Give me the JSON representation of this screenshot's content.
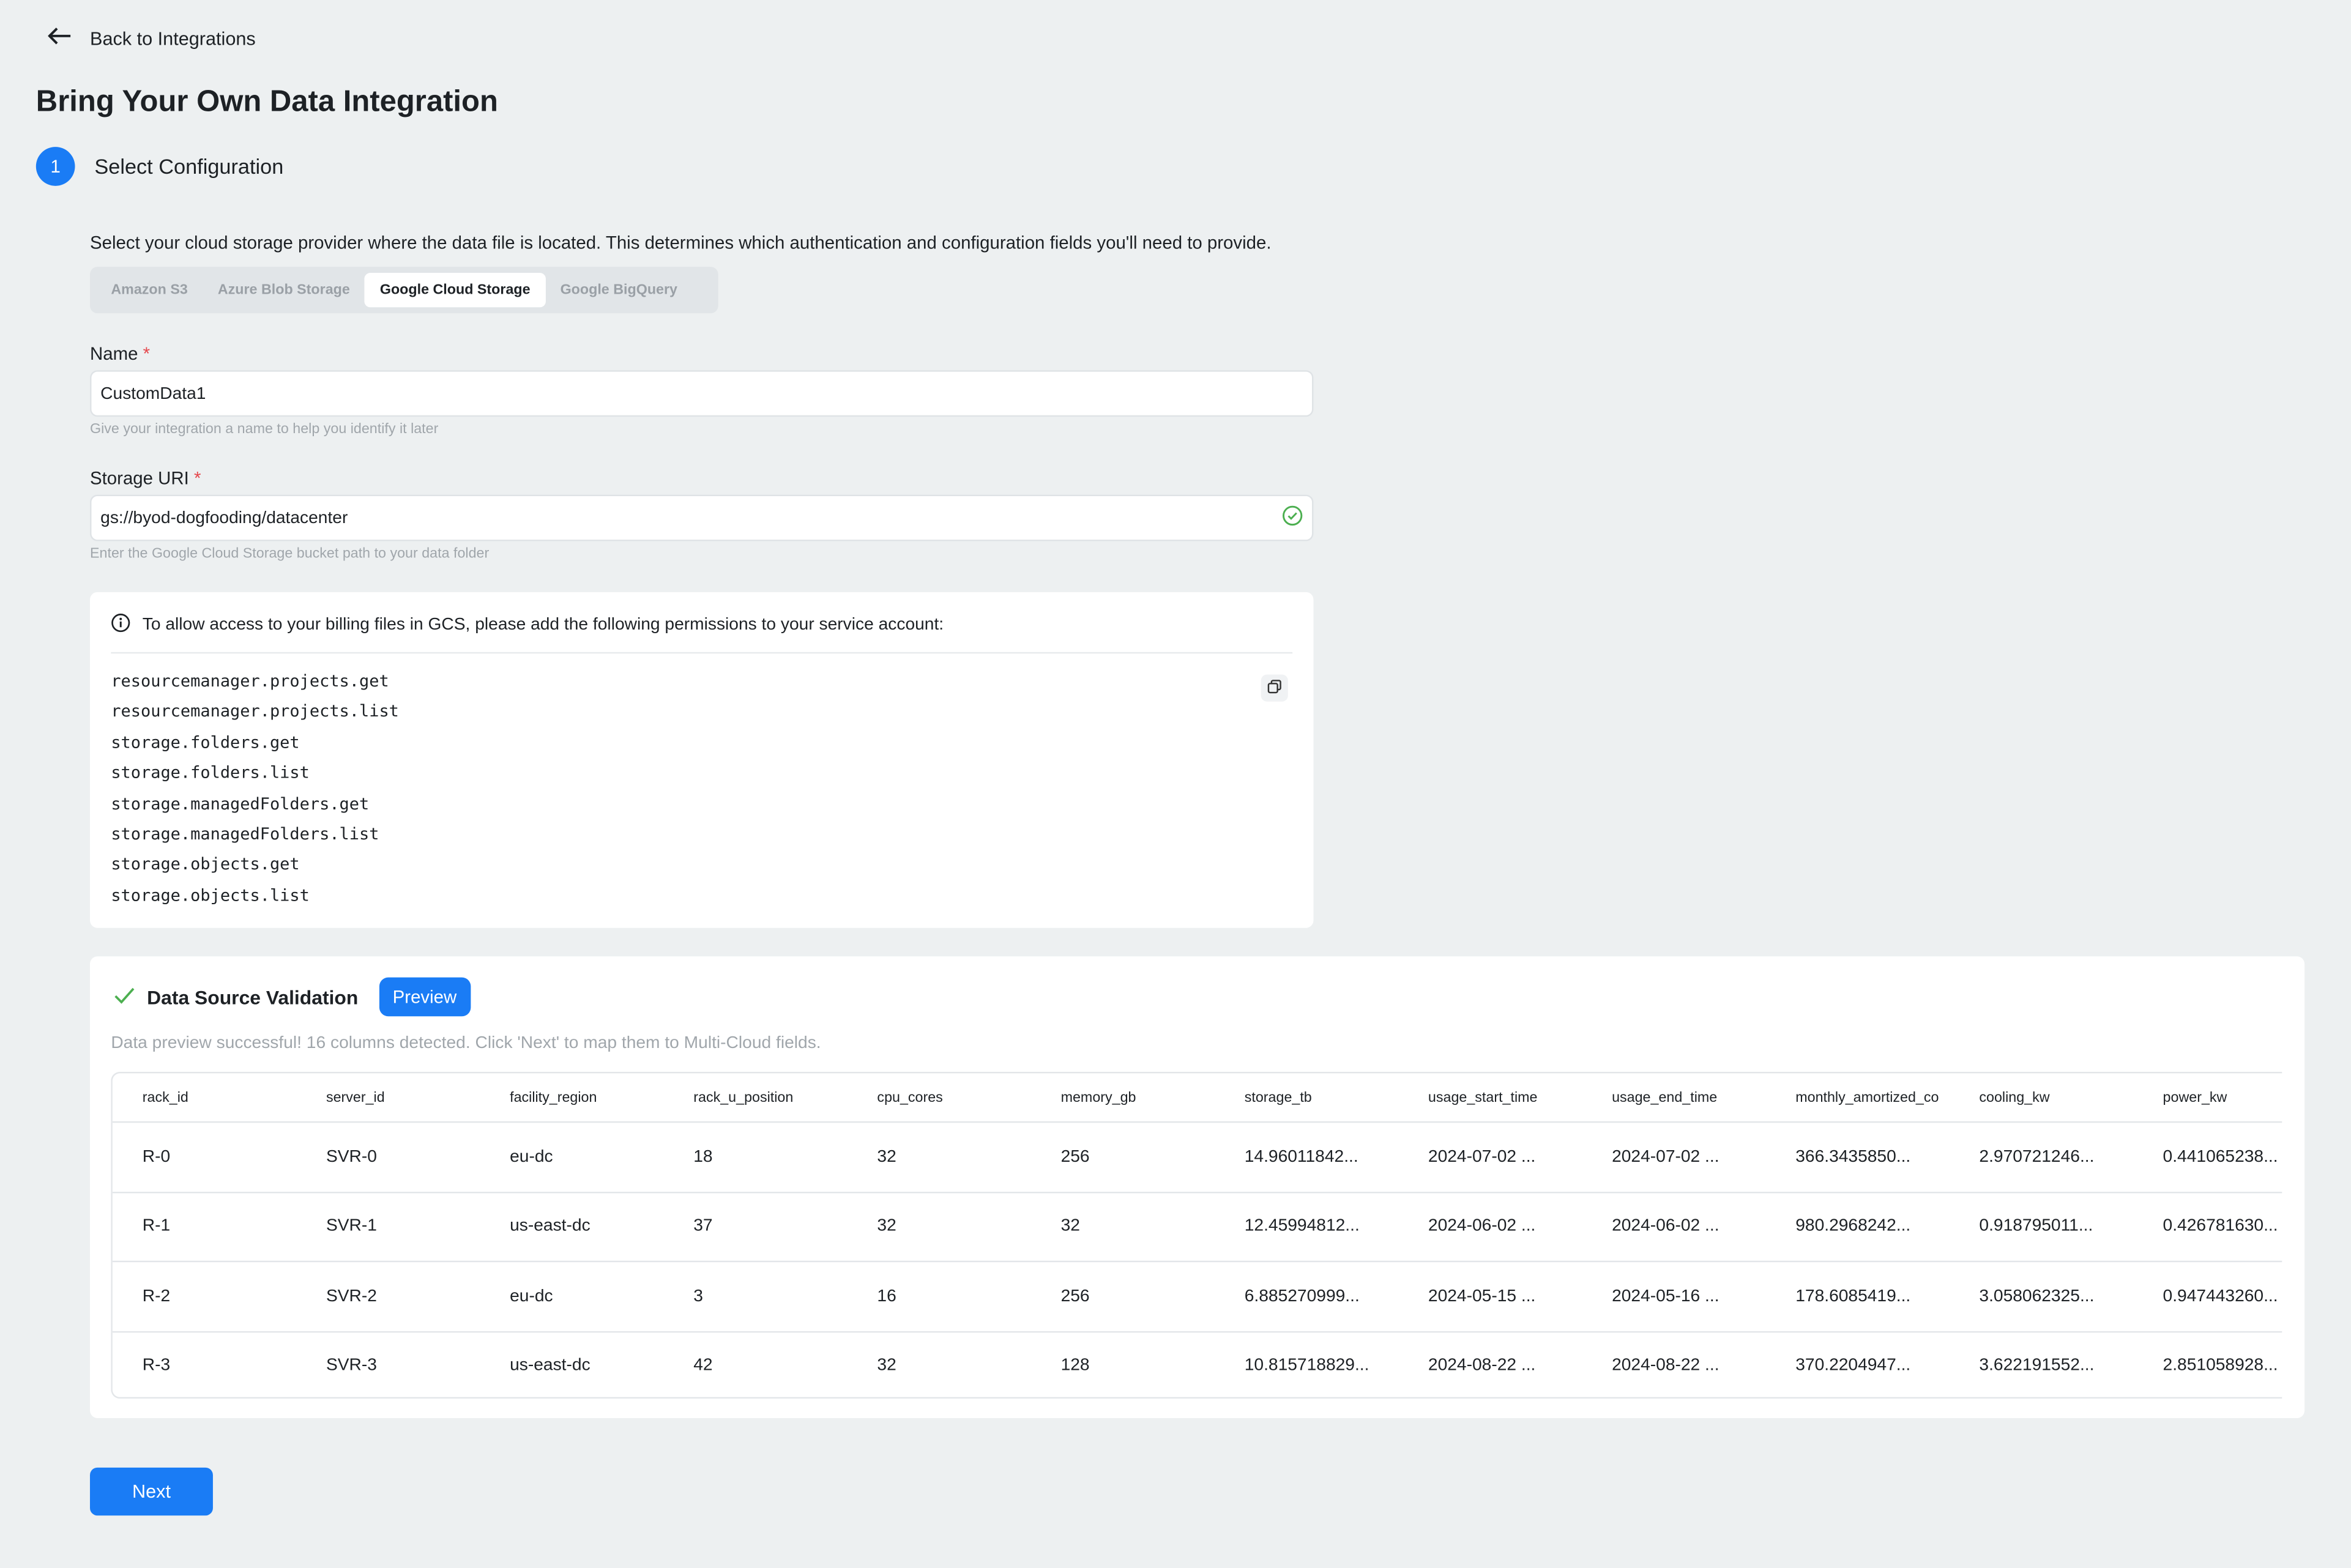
{
  "back_label": "Back to Integrations",
  "title": "Bring Your Own Data Integration",
  "step": {
    "number": "1",
    "label": "Select Configuration"
  },
  "description": "Select your cloud storage provider where the data file is located. This determines which authentication and configuration fields you'll need to provide.",
  "tabs": [
    {
      "label": "Amazon S3"
    },
    {
      "label": "Azure Blob Storage"
    },
    {
      "label": "Google Cloud Storage",
      "active": true
    },
    {
      "label": "Google BigQuery"
    }
  ],
  "name_field": {
    "label": "Name",
    "required": "*",
    "value": "CustomData1",
    "help": "Give your integration a name to help you identify it later"
  },
  "uri_field": {
    "label": "Storage URI",
    "required": "*",
    "value": "gs://byod-dogfooding/datacenter",
    "help": "Enter the Google Cloud Storage bucket path to your data folder"
  },
  "permissions": {
    "header": "To allow access to your billing files in GCS, please add the following permissions to your service account:",
    "items": [
      "resourcemanager.projects.get",
      "resourcemanager.projects.list",
      "storage.folders.get",
      "storage.folders.list",
      "storage.managedFolders.get",
      "storage.managedFolders.list",
      "storage.objects.get",
      "storage.objects.list"
    ]
  },
  "validation": {
    "title": "Data Source Validation",
    "preview_label": "Preview",
    "message": "Data preview successful! 16 columns detected. Click 'Next' to map them to Multi-Cloud fields.",
    "columns": [
      "rack_id",
      "server_id",
      "facility_region",
      "rack_u_position",
      "cpu_cores",
      "memory_gb",
      "storage_tb",
      "usage_start_time",
      "usage_end_time",
      "monthly_amortized_co",
      "cooling_kw",
      "power_kw"
    ],
    "rows": [
      [
        "R-0",
        "SVR-0",
        "eu-dc",
        "18",
        "32",
        "256",
        "14.96011842...",
        "2024-07-02 ...",
        "2024-07-02 ...",
        "366.3435850...",
        "2.970721246...",
        "0.441065238..."
      ],
      [
        "R-1",
        "SVR-1",
        "us-east-dc",
        "37",
        "32",
        "32",
        "12.45994812...",
        "2024-06-02 ...",
        "2024-06-02 ...",
        "980.2968242...",
        "0.918795011...",
        "0.426781630..."
      ],
      [
        "R-2",
        "SVR-2",
        "eu-dc",
        "3",
        "16",
        "256",
        "6.885270999...",
        "2024-05-15 ...",
        "2024-05-16 ...",
        "178.6085419...",
        "3.058062325...",
        "0.947443260..."
      ],
      [
        "R-3",
        "SVR-3",
        "us-east-dc",
        "42",
        "32",
        "128",
        "10.815718829...",
        "2024-08-22 ...",
        "2024-08-22 ...",
        "370.2204947...",
        "3.622191552...",
        "2.851058928..."
      ]
    ]
  },
  "next_label": "Next",
  "colors": {
    "accent": "#1a7cf5",
    "success": "#4caf50",
    "required": "#e5484d"
  }
}
